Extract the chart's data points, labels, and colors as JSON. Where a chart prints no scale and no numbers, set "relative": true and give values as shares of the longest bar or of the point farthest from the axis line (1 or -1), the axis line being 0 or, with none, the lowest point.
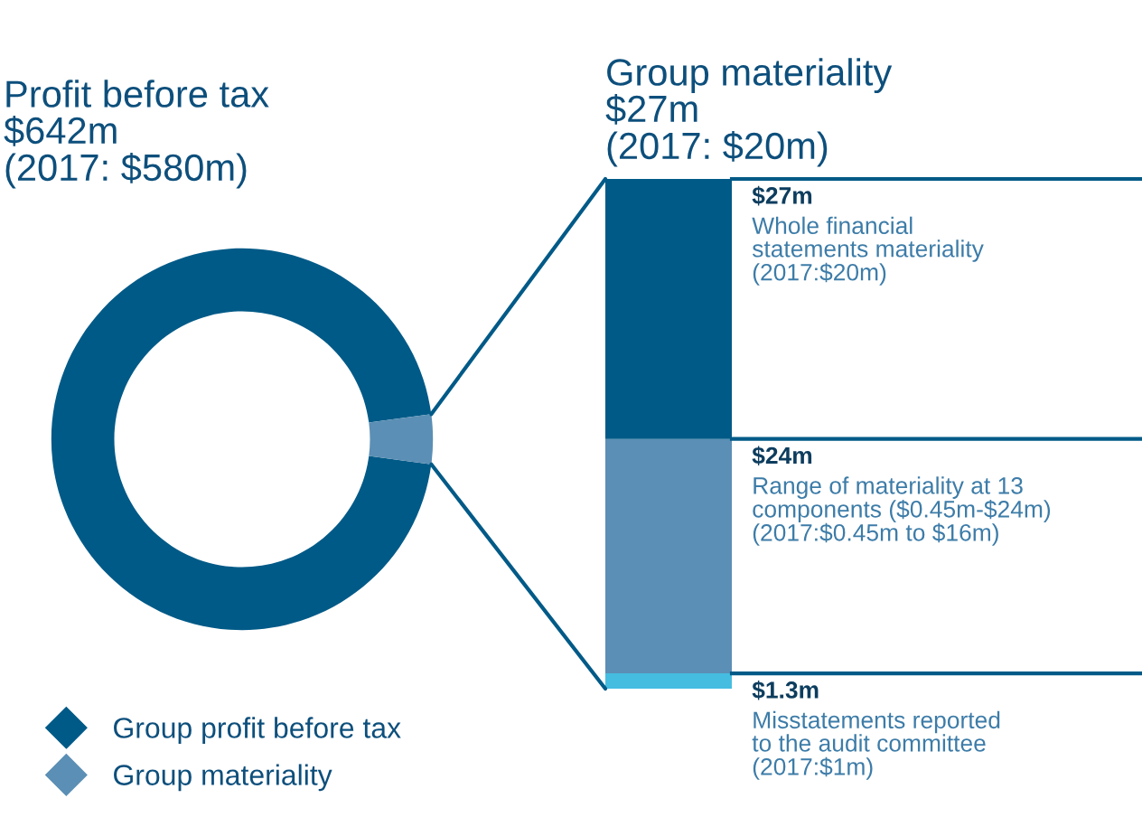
{
  "chart_data": [
    {
      "type": "donut",
      "title": "Profit before tax\n$642m\n(2017: $580m)",
      "categories": [
        "Group profit before tax",
        "Group materiality"
      ],
      "values": [
        95.8,
        4.2
      ],
      "colors": [
        "#005a87",
        "#5b8fb5"
      ],
      "legend": "bottom left"
    },
    {
      "type": "bar",
      "title": "Group materiality\n$27m\n(2017: $20m)",
      "categories": [
        null
      ],
      "stacked": true,
      "relative": true,
      "series": [
        {
          "color": "#45bde0",
          "values": [
            0.03
          ]
        },
        {
          "color": "#5b8fb5",
          "values": [
            0.46
          ]
        },
        {
          "color": "#005a87",
          "values": [
            0.51
          ]
        }
      ],
      "annotations": [
        "$27m\nWhole financial\nstatements materiality\n(2017:$20m)",
        "$24m\nRange of materiality at 13\ncomponents ($0.45m-$24m)\n(2017:$0.45m to $16m)",
        "$1.3m\nMisstatements reported\nto the audit committee\n(2017:$1m)"
      ]
    }
  ]
}
